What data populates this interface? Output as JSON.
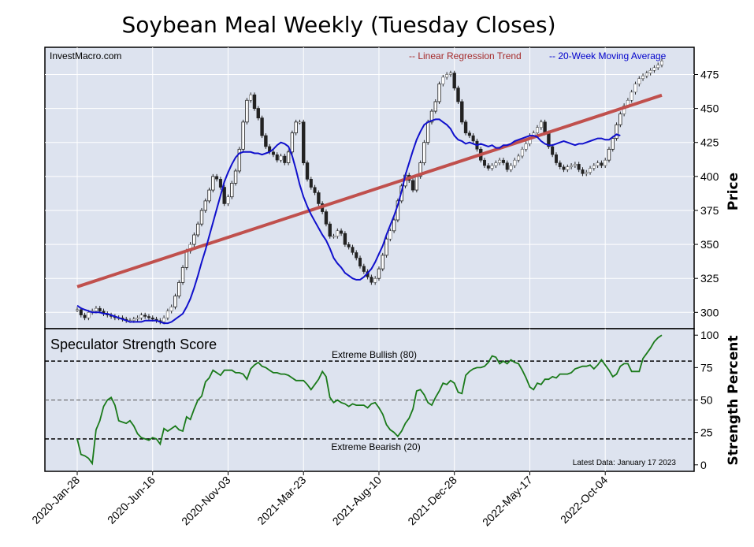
{
  "title": "Soybean Meal Weekly (Tuesday Closes)",
  "watermark": "InvestMacro.com",
  "legend": {
    "trend": "-- Linear Regression Trend",
    "ma": "-- 20-Week Moving Average",
    "trend_color": "#c0504d",
    "ma_color": "#1010cc"
  },
  "price_panel": {
    "ylabel": "Price",
    "yticks": [
      300,
      325,
      350,
      375,
      400,
      425,
      450,
      475
    ],
    "ylim": [
      288,
      495
    ]
  },
  "strength_panel": {
    "title": "Speculator Strength Score",
    "ylabel": "Strength Percent",
    "yticks": [
      0,
      25,
      50,
      75,
      100
    ],
    "ylim": [
      -5,
      105
    ],
    "bullish_label": "Extreme Bullish (80)",
    "bearish_label": "Extreme Bearish (20)",
    "bullish_level": 80,
    "bearish_level": 20,
    "mid_level": 50,
    "latest": "Latest Data: January 17 2023",
    "line_color": "#1a7a1a"
  },
  "x_labels": [
    "2020-Jan-28",
    "2020-Jun-16",
    "2020-Nov-03",
    "2021-Mar-23",
    "2021-Aug-10",
    "2021-Dec-28",
    "2022-May-17",
    "2022-Oct-04"
  ],
  "chart_data": {
    "type": "line",
    "x_weeks": 156,
    "price_closes": [
      302,
      298,
      296,
      300,
      301,
      303,
      301,
      299,
      298,
      297,
      296,
      296,
      295,
      294,
      294,
      295,
      296,
      298,
      297,
      296,
      295,
      294,
      293,
      296,
      301,
      304,
      312,
      322,
      333,
      345,
      350,
      357,
      365,
      375,
      382,
      390,
      400,
      398,
      392,
      380,
      385,
      395,
      404,
      420,
      440,
      456,
      460,
      450,
      443,
      430,
      422,
      418,
      416,
      412,
      415,
      410,
      418,
      432,
      440,
      440,
      410,
      398,
      392,
      388,
      380,
      374,
      365,
      356,
      356,
      360,
      358,
      350,
      348,
      344,
      340,
      334,
      330,
      326,
      322,
      325,
      332,
      342,
      354,
      360,
      368,
      382,
      393,
      401,
      397,
      390,
      400,
      410,
      425,
      440,
      448,
      455,
      468,
      473,
      475,
      476,
      465,
      455,
      440,
      432,
      430,
      426,
      420,
      412,
      408,
      406,
      408,
      410,
      412,
      410,
      405,
      408,
      412,
      415,
      420,
      424,
      430,
      432,
      436,
      440,
      432,
      422,
      416,
      410,
      407,
      405,
      407,
      408,
      409,
      405,
      402,
      403,
      406,
      408,
      410,
      408,
      412,
      420,
      428,
      438,
      446,
      452,
      456,
      462,
      468,
      472,
      474,
      476,
      478,
      480,
      482,
      485
    ],
    "moving_average": [
      305,
      303,
      302,
      301,
      300,
      300,
      300,
      299,
      299,
      298,
      297,
      296,
      295,
      294,
      293,
      293,
      293,
      293,
      294,
      294,
      294,
      294,
      293,
      292,
      292,
      293,
      295,
      297,
      299,
      304,
      310,
      318,
      327,
      337,
      346,
      356,
      366,
      376,
      386,
      396,
      403,
      409,
      414,
      417,
      418,
      418,
      418,
      417,
      417,
      416,
      417,
      418,
      420,
      423,
      425,
      424,
      422,
      415,
      405,
      394,
      385,
      378,
      372,
      367,
      362,
      357,
      353,
      347,
      340,
      336,
      333,
      329,
      327,
      325,
      324,
      324,
      326,
      329,
      332,
      337,
      343,
      349,
      357,
      364,
      371,
      379,
      389,
      401,
      410,
      419,
      427,
      433,
      438,
      440,
      441,
      442,
      442,
      440,
      438,
      435,
      430,
      427,
      426,
      424,
      425,
      424,
      423,
      424,
      423,
      422,
      423,
      421,
      421,
      423,
      423,
      424,
      426,
      427,
      428,
      429,
      430,
      430,
      429,
      426,
      424,
      423,
      423,
      424,
      425,
      426,
      425,
      424,
      423,
      424,
      424,
      425,
      426,
      427,
      428,
      428,
      427,
      427,
      429,
      431,
      430
    ],
    "strength": [
      20,
      8,
      7,
      5,
      1,
      27,
      34,
      45,
      50,
      52,
      46,
      34,
      33,
      32,
      34,
      30,
      24,
      21,
      20,
      19,
      21,
      20,
      16,
      28,
      26,
      28,
      30,
      27,
      26,
      37,
      35,
      43,
      50,
      53,
      64,
      67,
      73,
      71,
      69,
      73,
      73,
      73,
      71,
      71,
      70,
      66,
      74,
      77,
      79,
      76,
      75,
      73,
      71,
      71,
      70,
      70,
      69,
      67,
      65,
      65,
      65,
      62,
      58,
      62,
      66,
      72,
      68,
      52,
      48,
      50,
      48,
      47,
      45,
      47,
      46,
      46,
      46,
      44,
      47,
      48,
      44,
      39,
      31,
      27,
      25,
      22,
      26,
      32,
      36,
      43,
      57,
      58,
      54,
      48,
      46,
      52,
      57,
      63,
      62,
      65,
      63,
      56,
      55,
      69,
      72,
      74,
      75,
      75,
      76,
      79,
      84,
      83,
      78,
      80,
      78,
      81,
      79,
      78,
      73,
      67,
      60,
      58,
      63,
      62,
      66,
      66,
      68,
      67,
      70,
      70,
      70,
      71,
      74,
      75,
      76,
      76,
      77,
      74,
      77,
      81,
      77,
      73,
      68,
      70,
      76,
      78,
      78,
      72,
      72,
      72,
      82,
      86,
      90,
      95,
      98,
      100
    ]
  }
}
